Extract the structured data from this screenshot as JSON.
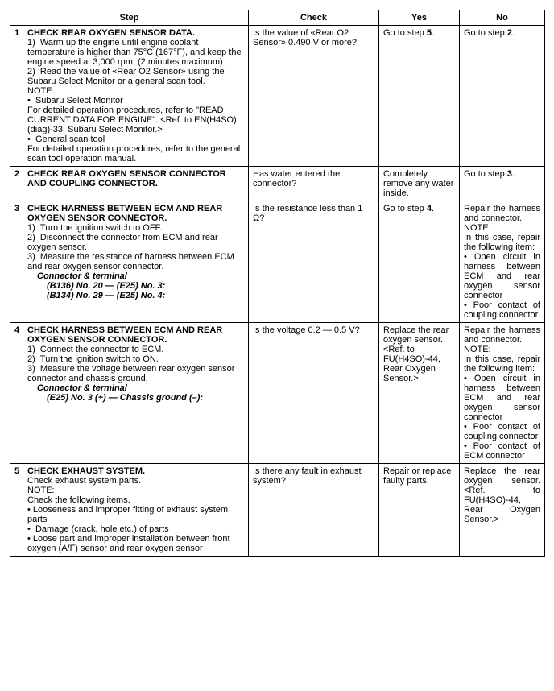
{
  "headers": {
    "step": "Step",
    "check": "Check",
    "yes": "Yes",
    "no": "No"
  },
  "rows": [
    {
      "num": "1",
      "step_html": "<span class=\"title\">CHECK REAR OXYGEN SENSOR DATA.</span><br>1) &nbsp;Warm up the engine until engine coolant temperature is higher than 75°C (167°F), and keep the engine speed at 3,000 rpm. (2 minutes maximum)<br>2) &nbsp;Read the value of «Rear O2 Sensor» using the Subaru Select Monitor or a general scan tool.<br>NOTE:<br>• &nbsp;Subaru Select Monitor<br><span class=\"just\">For detailed operation procedures, refer to \"READ CURRENT DATA FOR ENGINE\". &lt;Ref. to EN(H4SO)(diag)-33, Subaru Select Monitor.&gt;</span><br>• &nbsp;General scan tool<br>For detailed operation procedures, refer to the general scan tool operation manual.",
      "check_html": "Is the value of «Rear O2 Sensor» 0.490 V or more?",
      "yes_html": "Go to step <span class=\"bold\">5</span>.",
      "no_html": "Go to step <span class=\"bold\">2</span>."
    },
    {
      "num": "2",
      "step_html": "<span class=\"title\">CHECK REAR OXYGEN SENSOR CONNECTOR AND COUPLING CONNECTOR.</span>",
      "check_html": "Has water entered the connector?",
      "yes_html": "Completely remove any water inside.",
      "no_html": "Go to step <span class=\"bold\">3</span>."
    },
    {
      "num": "3",
      "step_html": "<span class=\"title\">CHECK HARNESS BETWEEN ECM AND REAR OXYGEN SENSOR CONNECTOR.</span><br>1) &nbsp;Turn the ignition switch to OFF.<br>2) &nbsp;Disconnect the connector from ECM and rear oxygen sensor.<br>3) &nbsp;Measure the resistance of harness between ECM and rear oxygen sensor connector.<br><span class=\"bi\">Connector &amp; terminal</span><br><span class=\"bi2\">(B136) No. 20 — (E25) No. 3:</span><br><span class=\"bi2\">(B134) No. 29 — (E25) No. 4:</span>",
      "check_html": "Is the resistance less than 1 Ω?",
      "yes_html": "Go to step <span class=\"bold\">4</span>.",
      "no_html": "Repair the harness and connector.<br>NOTE:<br>In this case, repair the following item:<br>• Open circuit in harness between ECM and rear oxygen sensor connector<br>• Poor contact of coupling connector"
    },
    {
      "num": "4",
      "step_html": "<span class=\"title\">CHECK HARNESS BETWEEN ECM AND REAR OXYGEN SENSOR CONNECTOR.</span><br>1) &nbsp;Connect the connector to ECM.<br>2) &nbsp;Turn the ignition switch to ON.<br>3) &nbsp;Measure the voltage between rear oxygen sensor connector and chassis ground.<br><span class=\"bi\">Connector &amp; terminal</span><br><span class=\"bi2\">(E25) No. 3 (+) — Chassis ground (–):</span>",
      "check_html": "Is the voltage 0.2 — 0.5 V?",
      "yes_html": "Replace the rear oxygen sensor. &lt;Ref. to FU(H4SO)-44, Rear Oxygen Sensor.&gt;",
      "no_html": "Repair the harness and connector.<br>NOTE:<br>In this case, repair the following item:<br>• Open circuit in harness between ECM and rear oxygen sensor connector<br>• Poor contact of coupling connector<br>• Poor contact of ECM connector"
    },
    {
      "num": "5",
      "step_html": "<span class=\"title\">CHECK EXHAUST SYSTEM.</span><br>Check exhaust system parts.<br>NOTE:<br>Check the following items.<br>• Looseness and improper fitting of exhaust system parts<br>• &nbsp;Damage (crack, hole etc.) of parts<br>• Loose part and improper installation between front oxygen (A/F) sensor and rear oxygen sensor",
      "check_html": "Is there any fault in exhaust system?",
      "yes_html": "Repair or replace faulty parts.",
      "no_html": "Replace the rear oxygen sensor. &lt;Ref. to FU(H4SO)-44, Rear Oxygen Sensor.&gt;"
    }
  ]
}
